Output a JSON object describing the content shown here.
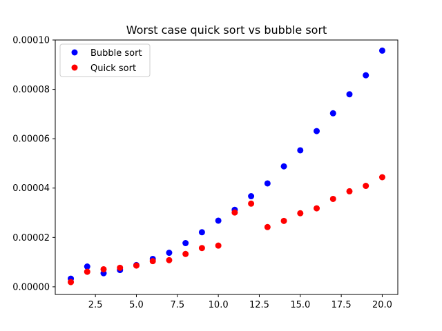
{
  "chart_data": {
    "type": "scatter",
    "title": "Worst case quick sort vs bubble sort",
    "xlabel": "",
    "ylabel": "",
    "xlim": [
      0.05,
      20.95
    ],
    "ylim": [
      -3.1e-06,
      0.0001
    ],
    "xticks": [
      2.5,
      5.0,
      7.5,
      10.0,
      12.5,
      15.0,
      17.5,
      20.0
    ],
    "xtick_labels": [
      "2.5",
      "5.0",
      "7.5",
      "10.0",
      "12.5",
      "15.0",
      "17.5",
      "20.0"
    ],
    "yticks": [
      0,
      2e-05,
      4e-05,
      6e-05,
      8e-05,
      0.0001
    ],
    "ytick_labels": [
      "0.00000",
      "0.00002",
      "0.00004",
      "0.00006",
      "0.00008",
      "0.00010"
    ],
    "grid": false,
    "legend_position": "top-left",
    "series": [
      {
        "name": "Bubble sort",
        "color": "#0000ff",
        "x": [
          1,
          2,
          3,
          4,
          5,
          6,
          7,
          8,
          9,
          10,
          11,
          12,
          13,
          14,
          15,
          16,
          17,
          18,
          19,
          20
        ],
        "y": [
          3.3e-06,
          8.2e-06,
          5.5e-06,
          6.8e-06,
          8.8e-06,
          1.13e-05,
          1.38e-05,
          1.77e-05,
          2.21e-05,
          2.68e-05,
          3.12e-05,
          3.67e-05,
          4.19e-05,
          4.88e-05,
          5.53e-05,
          6.31e-05,
          7.03e-05,
          7.8e-05,
          8.57e-05,
          9.57e-05
        ]
      },
      {
        "name": "Quick sort",
        "color": "#ff0000",
        "x": [
          1,
          2,
          3,
          4,
          5,
          6,
          7,
          8,
          9,
          10,
          11,
          12,
          13,
          14,
          15,
          16,
          17,
          18,
          19,
          20
        ],
        "y": [
          1.9e-06,
          6.1e-06,
          7.1e-06,
          7.7e-06,
          8.6e-06,
          1.04e-05,
          1.08e-05,
          1.33e-05,
          1.57e-05,
          1.67e-05,
          3.01e-05,
          3.37e-05,
          2.42e-05,
          2.67e-05,
          2.98e-05,
          3.18e-05,
          3.56e-05,
          3.87e-05,
          4.09e-05,
          4.44e-05
        ]
      }
    ]
  }
}
